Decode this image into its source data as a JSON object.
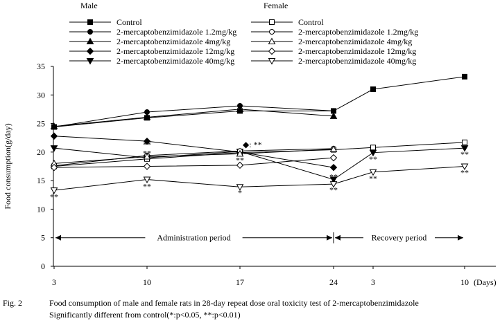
{
  "chart_data": {
    "type": "line",
    "ylabel": "Food consumption(g/day)",
    "xlabel": "(Days)",
    "ylim": [
      0,
      35
    ],
    "yticks": [
      0,
      5,
      10,
      15,
      20,
      25,
      30,
      35
    ],
    "x_points": [
      "3",
      "10",
      "17",
      "24",
      "3",
      "10"
    ],
    "legend_group_labels": {
      "male": "Male",
      "female": "Female"
    },
    "series": [
      {
        "name": "Control",
        "sex": "male",
        "marker": "square-filled",
        "values": [
          24.4,
          26.0,
          27.2,
          27.2,
          31.0,
          33.2
        ]
      },
      {
        "name": "2-mercaptobenzimidazole 1.2mg/kg",
        "sex": "male",
        "marker": "circle-filled",
        "values": [
          24.4,
          27.0,
          28.1,
          27.2,
          null,
          null
        ]
      },
      {
        "name": "2-mercaptobenzimidazole 4mg/kg",
        "sex": "male",
        "marker": "triangle-up-filled",
        "values": [
          24.5,
          26.1,
          27.5,
          26.3,
          null,
          null
        ]
      },
      {
        "name": "2-mercaptobenzimidazole 12mg/kg",
        "sex": "male",
        "marker": "diamond-filled",
        "values": [
          22.8,
          21.9,
          20.0,
          17.3,
          null,
          null
        ]
      },
      {
        "name": "2-mercaptobenzimidazole 40mg/kg",
        "sex": "male",
        "marker": "triangle-down-filled",
        "values": [
          20.7,
          19.0,
          20.1,
          15.2,
          19.9,
          20.7
        ]
      },
      {
        "name": "Control",
        "sex": "female",
        "marker": "square-open",
        "values": [
          17.5,
          18.8,
          19.9,
          20.4,
          20.8,
          21.7
        ]
      },
      {
        "name": "2-mercaptobenzimidazole 1.2mg/kg",
        "sex": "female",
        "marker": "circle-open",
        "values": [
          17.6,
          19.4,
          20.2,
          20.6,
          null,
          null
        ]
      },
      {
        "name": "2-mercaptobenzimidazole 4mg/kg",
        "sex": "female",
        "marker": "triangle-up-open",
        "values": [
          18.0,
          19.2,
          19.7,
          20.5,
          null,
          null
        ]
      },
      {
        "name": "2-mercaptobenzimidazole 12mg/kg",
        "sex": "female",
        "marker": "diamond-open",
        "values": [
          17.3,
          17.5,
          17.7,
          19.0,
          null,
          null
        ]
      },
      {
        "name": "2-mercaptobenzimidazole 40mg/kg",
        "sex": "female",
        "marker": "triangle-down-open",
        "values": [
          13.3,
          15.2,
          13.9,
          14.4,
          16.5,
          17.5
        ]
      }
    ],
    "annotations": [
      {
        "text": "**",
        "x_index": 0,
        "y": 12.2
      },
      {
        "text": "**",
        "x_index": 1,
        "y": 21.3
      },
      {
        "text": "**",
        "x_index": 1,
        "y": 19.8
      },
      {
        "text": "**",
        "x_index": 1,
        "y": 14.0
      },
      {
        "text": "◆: **",
        "x_index": 2,
        "y": 21.3
      },
      {
        "text": "**",
        "x_index": 2,
        "y": 18.6
      },
      {
        "text": "*",
        "x_index": 2,
        "y": 12.9
      },
      {
        "text": "**",
        "x_index": 3,
        "y": 15.7
      },
      {
        "text": "**",
        "x_index": 3,
        "y": 13.4
      },
      {
        "text": "**",
        "x_index": 4,
        "y": 18.8
      },
      {
        "text": "**",
        "x_index": 4,
        "y": 15.4
      },
      {
        "text": "**",
        "x_index": 5,
        "y": 19.6
      },
      {
        "text": "**",
        "x_index": 5,
        "y": 16.4
      }
    ],
    "periods": [
      {
        "label": "Administration period",
        "from_index": 0,
        "to_index": 3,
        "y": 5
      },
      {
        "label": "Recovery period",
        "from_index": 3,
        "to_index": 5,
        "y": 5
      }
    ]
  },
  "caption": {
    "fig_label": "Fig. 2",
    "line1": "Food consumption of male and female rats in 28-day repeat dose oral toxicity test of 2-mercaptobenzimidazole",
    "line2": "Significantly different from control(*:p<0.05, **:p<0.01)"
  }
}
